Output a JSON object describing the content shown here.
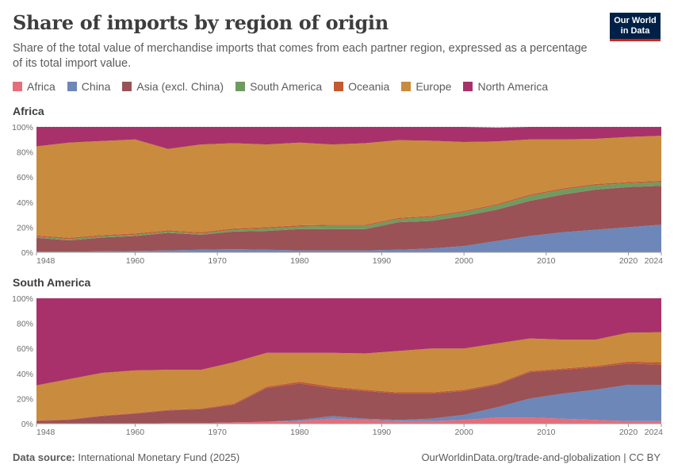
{
  "title": "Share of imports by region of origin",
  "subtitle": "Share of the total value of merchandise imports that comes from each partner region, expressed as a percentage of its total import value.",
  "logo": {
    "line1": "Our World",
    "line2": "in Data"
  },
  "legend": [
    {
      "name": "Africa",
      "color": "#e56e7a"
    },
    {
      "name": "China",
      "color": "#6d87b8"
    },
    {
      "name": "Asia (excl. China)",
      "color": "#9a5256"
    },
    {
      "name": "South America",
      "color": "#6f9b60"
    },
    {
      "name": "Oceania",
      "color": "#c35a31"
    },
    {
      "name": "Europe",
      "color": "#c98b3e"
    },
    {
      "name": "North America",
      "color": "#a8316b"
    }
  ],
  "footer": {
    "source_label": "Data source:",
    "source_text": "International Monetary Fund (2025)",
    "right": "OurWorldinData.org/trade-and-globalization | CC BY"
  },
  "chart_data": [
    {
      "type": "area",
      "stacked": true,
      "title": "Africa",
      "x": [
        1948,
        1952,
        1956,
        1960,
        1964,
        1968,
        1972,
        1976,
        1980,
        1984,
        1988,
        1992,
        1996,
        2000,
        2004,
        2008,
        2012,
        2016,
        2020,
        2024
      ],
      "ylim": [
        0,
        100
      ],
      "yticks": [
        "0%",
        "20%",
        "40%",
        "60%",
        "80%",
        "100%"
      ],
      "xticks": [
        1948,
        1960,
        1970,
        1980,
        1990,
        2000,
        2010,
        2020,
        2024
      ],
      "series": [
        {
          "name": "Africa",
          "values": [
            0,
            0,
            0,
            0,
            0,
            0,
            0,
            0,
            0,
            0,
            0,
            0,
            0,
            0,
            0,
            0,
            0,
            0,
            0,
            0
          ]
        },
        {
          "name": "China",
          "values": [
            0.5,
            0.5,
            0.8,
            1,
            1.5,
            2,
            2.5,
            2,
            1.5,
            1.5,
            1.5,
            2,
            3,
            5,
            9,
            13,
            16,
            18,
            20,
            22
          ]
        },
        {
          "name": "Asia (excl. China)",
          "values": [
            11,
            9,
            11,
            12,
            14,
            12,
            14,
            15,
            17,
            17,
            17,
            22,
            22,
            24,
            25,
            28,
            30,
            32,
            32,
            31
          ]
        },
        {
          "name": "South America",
          "values": [
            1,
            1,
            1,
            1,
            1,
            1,
            1.5,
            2,
            2,
            2.5,
            2.5,
            2.5,
            3,
            3,
            3.5,
            4,
            4,
            3.5,
            3,
            3
          ]
        },
        {
          "name": "Oceania",
          "values": [
            1,
            1,
            1,
            1,
            1,
            1,
            1,
            1,
            1,
            1,
            1,
            1,
            1,
            1,
            1,
            1,
            1,
            1,
            1,
            1
          ]
        },
        {
          "name": "Europe",
          "values": [
            71,
            76,
            75,
            75,
            65,
            70,
            68,
            66,
            66,
            64,
            65,
            62,
            60,
            55,
            50,
            44,
            39,
            36,
            36,
            36
          ]
        },
        {
          "name": "North America",
          "values": [
            15.5,
            12.5,
            11.2,
            10,
            17.5,
            14,
            13,
            14,
            12.5,
            14,
            13,
            10.5,
            11,
            12,
            11,
            10,
            10,
            9.5,
            8,
            7
          ]
        }
      ]
    },
    {
      "type": "area",
      "stacked": true,
      "title": "South America",
      "x": [
        1948,
        1952,
        1956,
        1960,
        1964,
        1968,
        1972,
        1976,
        1980,
        1984,
        1988,
        1992,
        1996,
        2000,
        2004,
        2008,
        2012,
        2016,
        2020,
        2024
      ],
      "ylim": [
        0,
        100
      ],
      "yticks": [
        "0%",
        "20%",
        "40%",
        "60%",
        "80%",
        "100%"
      ],
      "xticks": [
        1948,
        1960,
        1970,
        1980,
        1990,
        2000,
        2010,
        2020,
        2024
      ],
      "series": [
        {
          "name": "Africa",
          "values": [
            0,
            0,
            0,
            0,
            0.5,
            0.5,
            1,
            1.5,
            2,
            4,
            3,
            2,
            2,
            3,
            5,
            5,
            4,
            3,
            2,
            2
          ]
        },
        {
          "name": "China",
          "values": [
            0,
            0,
            0,
            0,
            0,
            0,
            0,
            0,
            1,
            2,
            1,
            1,
            2,
            4,
            8,
            15,
            20,
            24,
            29,
            29
          ]
        },
        {
          "name": "Asia (excl. China)",
          "values": [
            2,
            3,
            6,
            8,
            10,
            11,
            14,
            27,
            29,
            22,
            22,
            21,
            20,
            19,
            18,
            21,
            19,
            18,
            17,
            16
          ]
        },
        {
          "name": "South America",
          "values": [
            0,
            0,
            0,
            0,
            0,
            0,
            0,
            0,
            0,
            0,
            0,
            0,
            0,
            0,
            0,
            0,
            0,
            0,
            0,
            0
          ]
        },
        {
          "name": "Oceania",
          "values": [
            0.5,
            0.5,
            0.5,
            0.5,
            0.5,
            0.5,
            1,
            1,
            1.5,
            1.5,
            1,
            1,
            1,
            1,
            1,
            1,
            1,
            1,
            1.5,
            2
          ]
        },
        {
          "name": "Europe",
          "values": [
            28,
            32,
            34,
            34,
            32,
            31,
            33,
            27,
            23,
            27,
            29,
            33,
            35,
            33,
            32,
            26,
            23,
            21,
            23,
            24
          ]
        },
        {
          "name": "North America",
          "values": [
            69.5,
            64.5,
            59.5,
            57.5,
            57,
            57,
            51,
            43.5,
            43.5,
            43.5,
            44,
            42,
            40,
            40,
            36,
            32,
            33,
            33,
            27.5,
            27
          ]
        }
      ]
    }
  ]
}
